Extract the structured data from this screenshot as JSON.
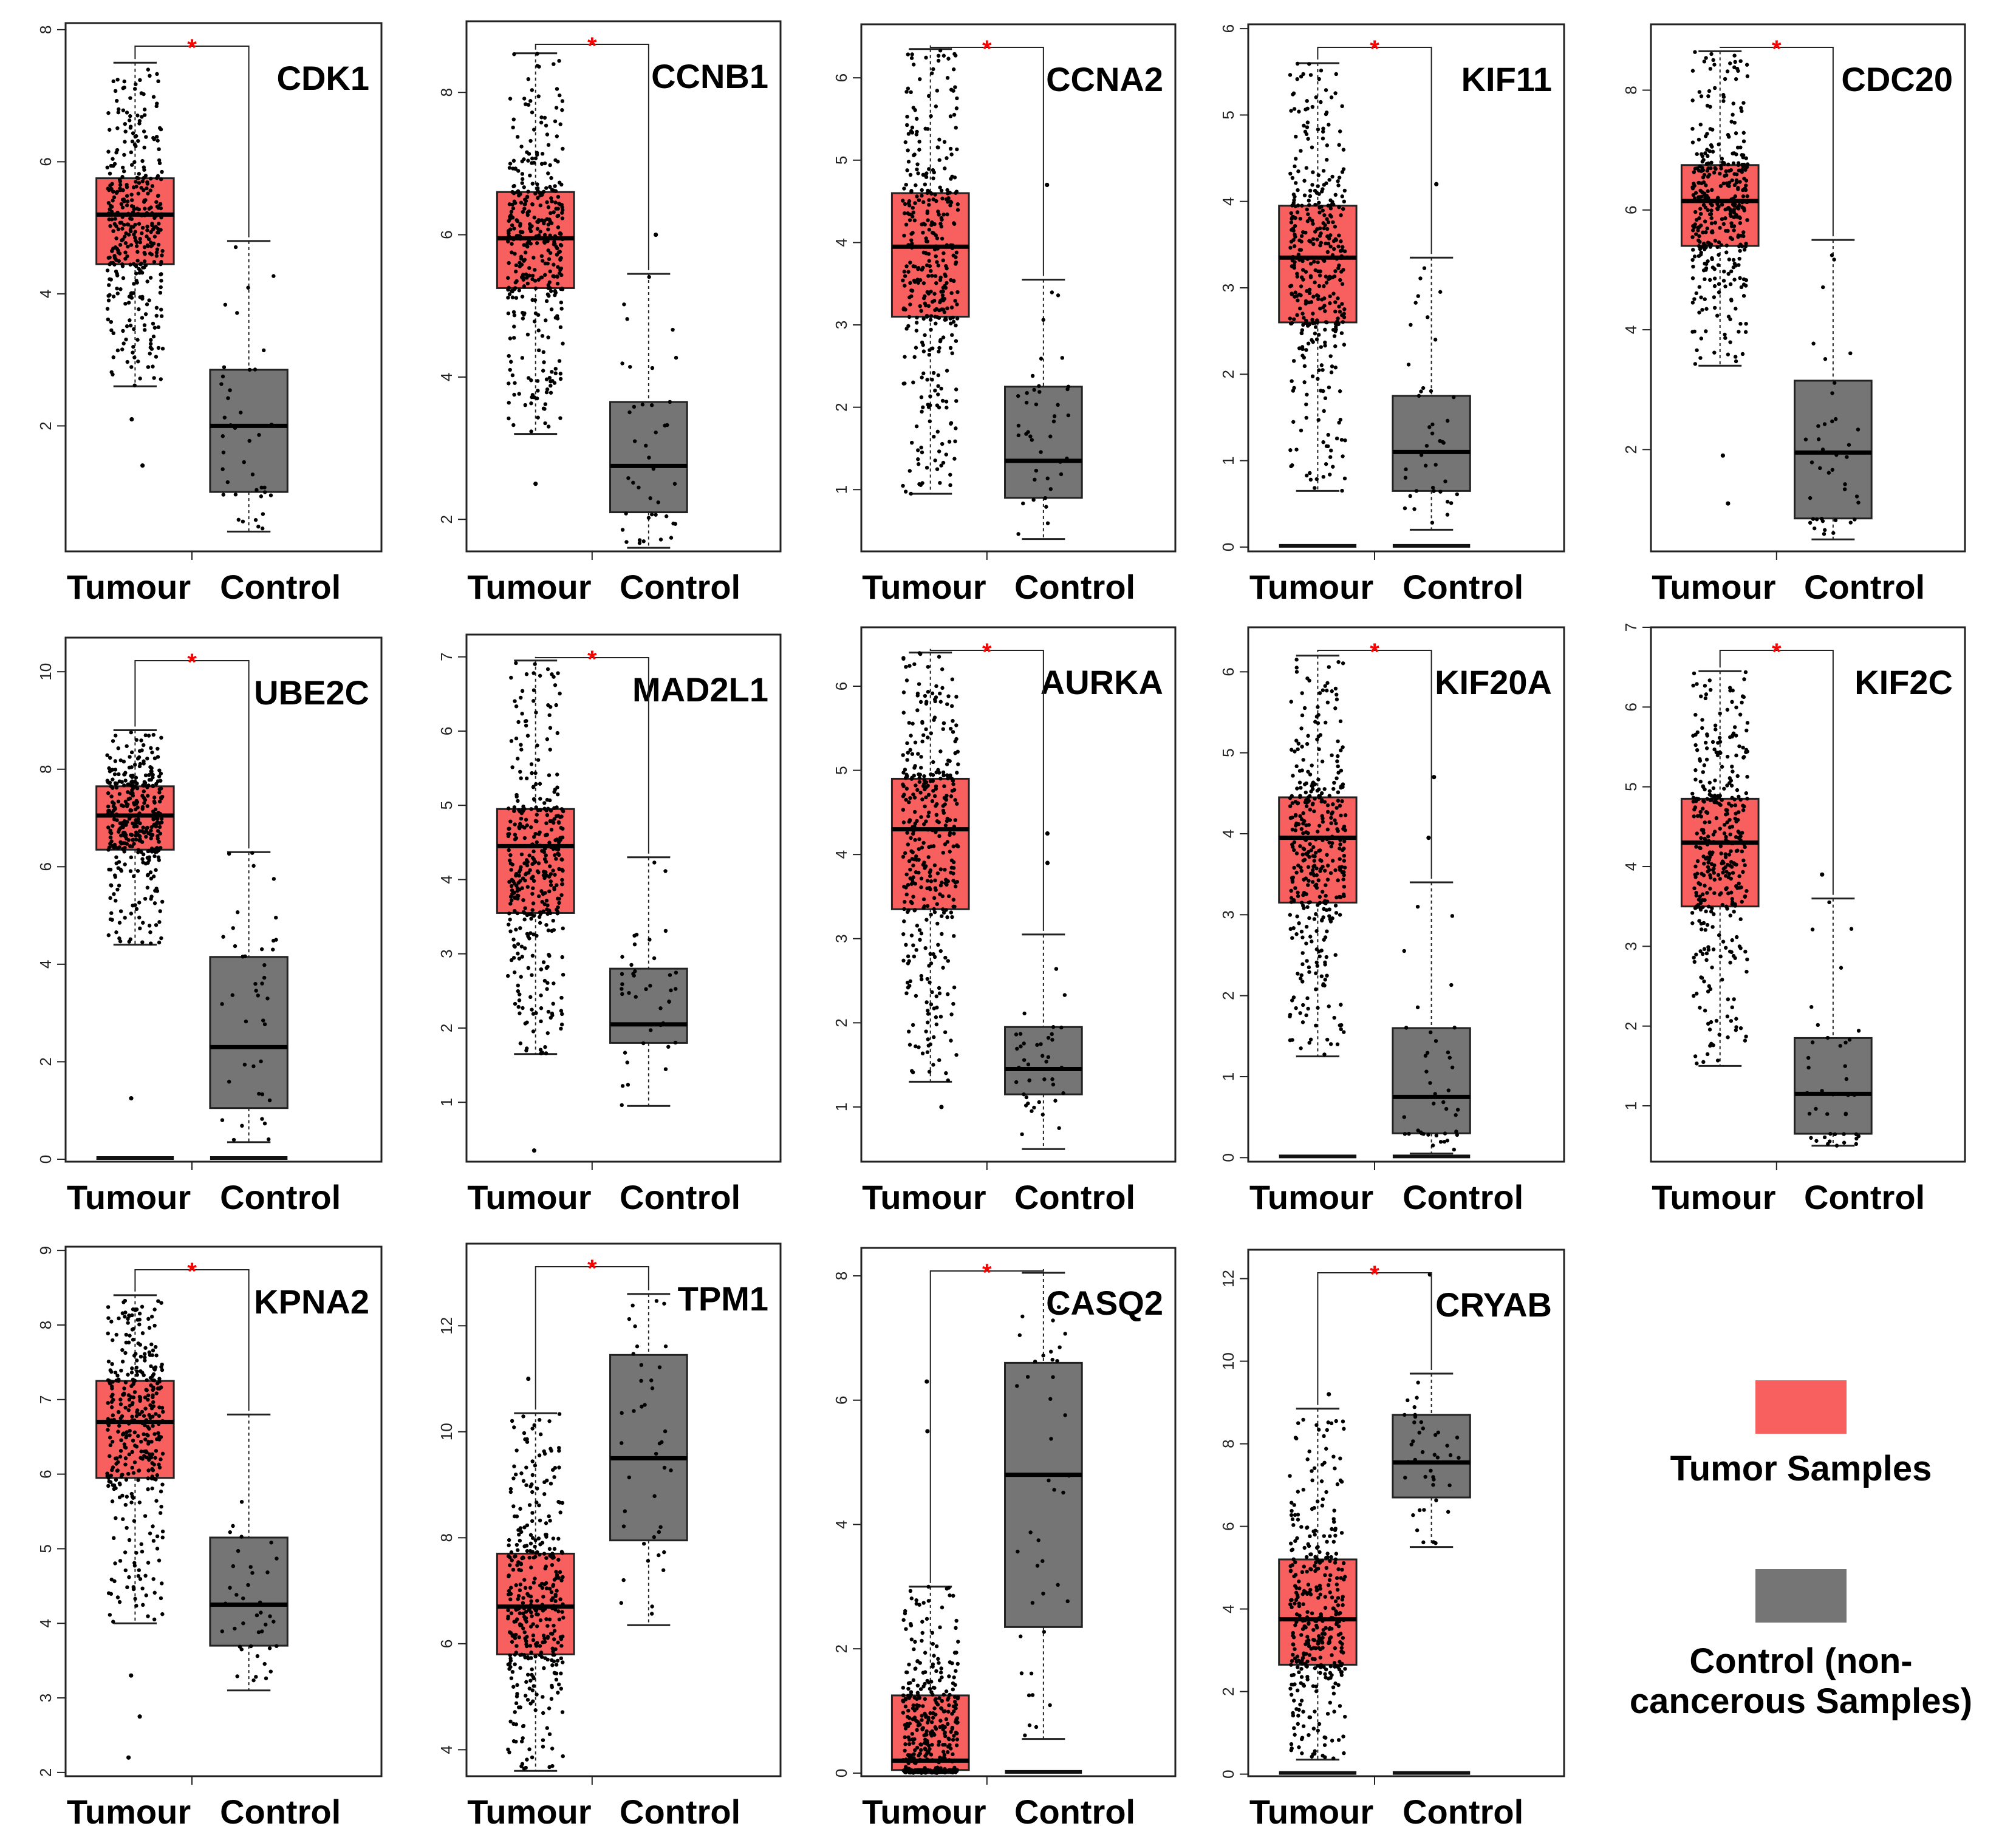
{
  "figure_description_colors": {
    "tumour": "#f8605f",
    "control": "#757575",
    "significance": "#ff0000",
    "points": "#000000"
  },
  "legend": {
    "tumor_label": "Tumor Samples",
    "control_label_line1": "Control (non-",
    "control_label_line2": "cancerous Samples)"
  },
  "chart_data": [
    {
      "type": "box",
      "title": "CDK1",
      "categories": [
        "Tumour",
        "Control"
      ],
      "ylim": [
        0.1,
        8.1
      ],
      "yticks": [
        2,
        4,
        6,
        8
      ],
      "significance": "*",
      "series": [
        {
          "name": "Tumour",
          "min": 2.6,
          "q1": 4.45,
          "median": 5.2,
          "q3": 5.75,
          "max": 7.5,
          "outliers": [
            1.4,
            2.1
          ]
        },
        {
          "name": "Control",
          "min": 0.4,
          "q1": 1.0,
          "median": 2.0,
          "q3": 2.85,
          "max": 4.8,
          "outliers": []
        }
      ]
    },
    {
      "type": "box",
      "title": "CCNB1",
      "categories": [
        "Tumour",
        "Control"
      ],
      "ylim": [
        1.55,
        9.0
      ],
      "yticks": [
        2,
        4,
        6,
        8
      ],
      "significance": "*",
      "series": [
        {
          "name": "Tumour",
          "min": 3.2,
          "q1": 5.25,
          "median": 5.95,
          "q3": 6.6,
          "max": 8.55,
          "outliers": [
            2.5
          ]
        },
        {
          "name": "Control",
          "min": 1.6,
          "q1": 2.1,
          "median": 2.75,
          "q3": 3.65,
          "max": 5.45,
          "outliers": [
            6.0
          ]
        }
      ]
    },
    {
      "type": "box",
      "title": "CCNA2",
      "categories": [
        "Tumour",
        "Control"
      ],
      "ylim": [
        0.25,
        6.65
      ],
      "yticks": [
        1,
        2,
        3,
        4,
        5,
        6
      ],
      "significance": "*",
      "series": [
        {
          "name": "Tumour",
          "min": 0.95,
          "q1": 3.1,
          "median": 3.95,
          "q3": 4.6,
          "max": 6.35,
          "outliers": []
        },
        {
          "name": "Control",
          "min": 0.4,
          "q1": 0.9,
          "median": 1.35,
          "q3": 2.25,
          "max": 3.55,
          "outliers": [
            4.7
          ]
        }
      ]
    },
    {
      "type": "box",
      "title": "KIF11",
      "categories": [
        "Tumour",
        "Control"
      ],
      "ylim": [
        -0.05,
        6.05
      ],
      "yticks": [
        0,
        1,
        2,
        3,
        4,
        5,
        6
      ],
      "significance": "*",
      "series": [
        {
          "name": "Tumour",
          "min": 0.65,
          "q1": 2.6,
          "median": 3.35,
          "q3": 3.95,
          "max": 5.6,
          "outliers": [
            0
          ]
        },
        {
          "name": "Control",
          "min": 0.2,
          "q1": 0.65,
          "median": 1.1,
          "q3": 1.75,
          "max": 3.35,
          "outliers": [
            4.2,
            0
          ]
        }
      ]
    },
    {
      "type": "box",
      "title": "CDC20",
      "categories": [
        "Tumour",
        "Control"
      ],
      "ylim": [
        0.3,
        9.1
      ],
      "yticks": [
        2,
        4,
        6,
        8
      ],
      "significance": "*",
      "series": [
        {
          "name": "Tumour",
          "min": 3.4,
          "q1": 5.4,
          "median": 6.15,
          "q3": 6.75,
          "max": 8.65,
          "outliers": [
            1.1,
            1.9
          ]
        },
        {
          "name": "Control",
          "min": 0.5,
          "q1": 0.85,
          "median": 1.95,
          "q3": 3.15,
          "max": 5.5,
          "outliers": []
        }
      ]
    },
    {
      "type": "box",
      "title": "UBE2C",
      "categories": [
        "Tumour",
        "Control"
      ],
      "ylim": [
        -0.05,
        10.7
      ],
      "yticks": [
        0,
        2,
        4,
        6,
        8,
        10
      ],
      "significance": "*",
      "series": [
        {
          "name": "Tumour",
          "min": 4.4,
          "q1": 6.35,
          "median": 7.05,
          "q3": 7.65,
          "max": 8.8,
          "outliers": [
            1.25,
            0
          ]
        },
        {
          "name": "Control",
          "min": 0.35,
          "q1": 1.05,
          "median": 2.3,
          "q3": 4.15,
          "max": 6.3,
          "outliers": [
            0
          ]
        }
      ]
    },
    {
      "type": "box",
      "title": "MAD2L1",
      "categories": [
        "Tumour",
        "Control"
      ],
      "ylim": [
        0.2,
        7.3
      ],
      "yticks": [
        1,
        2,
        3,
        4,
        5,
        6,
        7
      ],
      "significance": "*",
      "series": [
        {
          "name": "Tumour",
          "min": 1.65,
          "q1": 3.55,
          "median": 4.45,
          "q3": 4.95,
          "max": 6.95,
          "outliers": [
            0.35
          ]
        },
        {
          "name": "Control",
          "min": 0.95,
          "q1": 1.8,
          "median": 2.05,
          "q3": 2.8,
          "max": 4.3,
          "outliers": []
        }
      ]
    },
    {
      "type": "box",
      "title": "AURKA",
      "categories": [
        "Tumour",
        "Control"
      ],
      "ylim": [
        0.35,
        6.7
      ],
      "yticks": [
        1,
        2,
        3,
        4,
        5,
        6
      ],
      "significance": "*",
      "series": [
        {
          "name": "Tumour",
          "min": 1.3,
          "q1": 3.35,
          "median": 4.3,
          "q3": 4.9,
          "max": 6.4,
          "outliers": [
            1.0
          ]
        },
        {
          "name": "Control",
          "min": 0.5,
          "q1": 1.15,
          "median": 1.45,
          "q3": 1.95,
          "max": 3.05,
          "outliers": [
            3.9,
            4.25
          ]
        }
      ]
    },
    {
      "type": "box",
      "title": "KIF20A",
      "categories": [
        "Tumour",
        "Control"
      ],
      "ylim": [
        -0.05,
        6.55
      ],
      "yticks": [
        0,
        1,
        2,
        3,
        4,
        5,
        6
      ],
      "significance": "*",
      "series": [
        {
          "name": "Tumour",
          "min": 1.25,
          "q1": 3.15,
          "median": 3.95,
          "q3": 4.45,
          "max": 6.2,
          "outliers": [
            0
          ]
        },
        {
          "name": "Control",
          "min": 0.05,
          "q1": 0.3,
          "median": 0.75,
          "q3": 1.6,
          "max": 3.4,
          "outliers": [
            3.95,
            4.7,
            0
          ]
        }
      ]
    },
    {
      "type": "box",
      "title": "KIF2C",
      "categories": [
        "Tumour",
        "Control"
      ],
      "ylim": [
        0.3,
        7.0
      ],
      "yticks": [
        1,
        2,
        3,
        4,
        5,
        6,
        7
      ],
      "significance": "*",
      "series": [
        {
          "name": "Tumour",
          "min": 1.5,
          "q1": 3.5,
          "median": 4.3,
          "q3": 4.85,
          "max": 6.45,
          "outliers": []
        },
        {
          "name": "Control",
          "min": 0.5,
          "q1": 0.65,
          "median": 1.15,
          "q3": 1.85,
          "max": 3.6,
          "outliers": [
            3.9
          ]
        }
      ]
    },
    {
      "type": "box",
      "title": "KPNA2",
      "categories": [
        "Tumour",
        "Control"
      ],
      "ylim": [
        1.95,
        9.05
      ],
      "yticks": [
        2,
        3,
        4,
        5,
        6,
        7,
        8,
        9
      ],
      "significance": "*",
      "series": [
        {
          "name": "Tumour",
          "min": 4.0,
          "q1": 5.95,
          "median": 6.7,
          "q3": 7.25,
          "max": 8.4,
          "outliers": [
            2.2,
            2.75,
            3.3
          ]
        },
        {
          "name": "Control",
          "min": 3.1,
          "q1": 3.7,
          "median": 4.25,
          "q3": 5.15,
          "max": 6.8,
          "outliers": []
        }
      ]
    },
    {
      "type": "box",
      "title": "TPM1",
      "categories": [
        "Tumour",
        "Control"
      ],
      "ylim": [
        3.5,
        13.55
      ],
      "yticks": [
        4,
        6,
        8,
        10,
        12
      ],
      "significance": "*",
      "series": [
        {
          "name": "Tumour",
          "min": 3.6,
          "q1": 5.8,
          "median": 6.7,
          "q3": 7.7,
          "max": 10.35,
          "outliers": [
            11.0
          ]
        },
        {
          "name": "Control",
          "min": 6.35,
          "q1": 7.95,
          "median": 9.5,
          "q3": 11.45,
          "max": 12.6,
          "outliers": []
        }
      ]
    },
    {
      "type": "box",
      "title": "CASQ2",
      "categories": [
        "Tumour",
        "Control"
      ],
      "ylim": [
        -0.05,
        8.45
      ],
      "yticks": [
        0,
        2,
        4,
        6,
        8
      ],
      "significance": "*",
      "series": [
        {
          "name": "Tumour",
          "min": 0,
          "q1": 0.05,
          "median": 0.2,
          "q3": 1.25,
          "max": 3.0,
          "outliers": [
            5.5,
            6.3
          ]
        },
        {
          "name": "Control",
          "min": 0.55,
          "q1": 2.35,
          "median": 4.8,
          "q3": 6.6,
          "max": 8.05,
          "outliers": [
            0
          ]
        }
      ]
    },
    {
      "type": "box",
      "title": "CRYAB",
      "categories": [
        "Tumour",
        "Control"
      ],
      "ylim": [
        -0.05,
        12.7
      ],
      "yticks": [
        0,
        2,
        4,
        6,
        8,
        10,
        12
      ],
      "significance": "*",
      "series": [
        {
          "name": "Tumour",
          "min": 0.35,
          "q1": 2.65,
          "median": 3.75,
          "q3": 5.2,
          "max": 8.85,
          "outliers": [
            9.2,
            0
          ]
        },
        {
          "name": "Control",
          "min": 5.5,
          "q1": 6.7,
          "median": 7.55,
          "q3": 8.7,
          "max": 9.7,
          "outliers": [
            12.1,
            0
          ]
        }
      ]
    }
  ]
}
